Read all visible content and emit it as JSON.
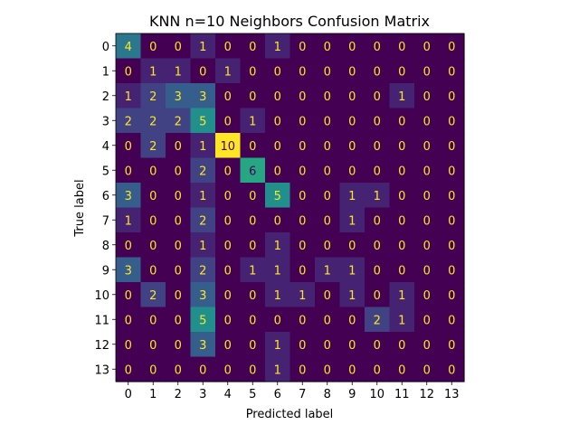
{
  "chart_data": {
    "type": "heatmap",
    "title": "KNN n=10 Neighbors Confusion Matrix",
    "xlabel": "Predicted label",
    "ylabel": "True label",
    "x_categories": [
      "0",
      "1",
      "2",
      "3",
      "4",
      "5",
      "6",
      "7",
      "8",
      "9",
      "10",
      "11",
      "12",
      "13"
    ],
    "y_categories": [
      "0",
      "1",
      "2",
      "3",
      "4",
      "5",
      "6",
      "7",
      "8",
      "9",
      "10",
      "11",
      "12",
      "13"
    ],
    "colormap": "viridis",
    "vmin": 0,
    "vmax": 10,
    "matrix": [
      [
        4,
        0,
        0,
        1,
        0,
        0,
        1,
        0,
        0,
        0,
        0,
        0,
        0,
        0
      ],
      [
        0,
        1,
        1,
        0,
        1,
        0,
        0,
        0,
        0,
        0,
        0,
        0,
        0,
        0
      ],
      [
        1,
        2,
        3,
        3,
        0,
        0,
        0,
        0,
        0,
        0,
        0,
        1,
        0,
        0
      ],
      [
        2,
        2,
        2,
        5,
        0,
        1,
        0,
        0,
        0,
        0,
        0,
        0,
        0,
        0
      ],
      [
        0,
        2,
        0,
        1,
        10,
        0,
        0,
        0,
        0,
        0,
        0,
        0,
        0,
        0
      ],
      [
        0,
        0,
        0,
        2,
        0,
        6,
        0,
        0,
        0,
        0,
        0,
        0,
        0,
        0
      ],
      [
        3,
        0,
        0,
        1,
        0,
        0,
        5,
        0,
        0,
        1,
        1,
        0,
        0,
        0
      ],
      [
        1,
        0,
        0,
        2,
        0,
        0,
        0,
        0,
        0,
        1,
        0,
        0,
        0,
        0
      ],
      [
        0,
        0,
        0,
        1,
        0,
        0,
        1,
        0,
        0,
        0,
        0,
        0,
        0,
        0
      ],
      [
        3,
        0,
        0,
        2,
        0,
        1,
        1,
        0,
        1,
        1,
        0,
        0,
        0,
        0
      ],
      [
        0,
        2,
        0,
        3,
        0,
        0,
        1,
        1,
        0,
        1,
        0,
        1,
        0,
        0
      ],
      [
        0,
        0,
        0,
        5,
        0,
        0,
        0,
        0,
        0,
        0,
        2,
        1,
        0,
        0
      ],
      [
        0,
        0,
        0,
        3,
        0,
        0,
        1,
        0,
        0,
        0,
        0,
        0,
        0,
        0
      ],
      [
        0,
        0,
        0,
        0,
        0,
        0,
        1,
        0,
        0,
        0,
        0,
        0,
        0,
        0
      ]
    ],
    "grid": false,
    "text_color_dark": "#fde725",
    "text_color_light": "#440154"
  }
}
